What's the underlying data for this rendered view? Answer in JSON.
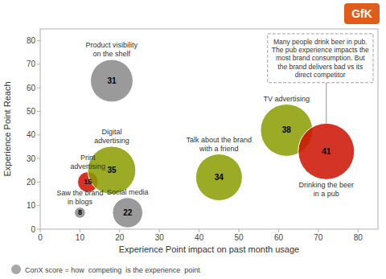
{
  "chart_data": {
    "type": "bubble",
    "xlabel": "Experience Point impact on past month usage",
    "ylabel": "Experience Point Reach",
    "xlim": [
      0,
      85
    ],
    "ylim": [
      0,
      85
    ],
    "xticks": [
      0,
      10,
      20,
      30,
      40,
      50,
      60,
      70,
      80
    ],
    "yticks": [
      0,
      10,
      20,
      30,
      40,
      50,
      60,
      70,
      80
    ],
    "data_labels": true,
    "points": [
      {
        "label": "Saw the brand\nin blogs",
        "x": 10,
        "y": 7,
        "size": 8,
        "color": "#888888"
      },
      {
        "label": "Print\nadvertising",
        "x": 12,
        "y": 20,
        "size": 15,
        "color": "#cc1100"
      },
      {
        "label": "Digital\nadvertising",
        "x": 18,
        "y": 25,
        "size": 35,
        "color": "#8a9c00"
      },
      {
        "label": "Product visibility\non the shelf",
        "x": 18,
        "y": 63,
        "size": 31,
        "color": "#888888"
      },
      {
        "label": "Social media",
        "x": 22,
        "y": 7,
        "size": 22,
        "color": "#888888"
      },
      {
        "label": "Talk about the brand\nwith a friend",
        "x": 45,
        "y": 22,
        "size": 34,
        "color": "#8a9c00"
      },
      {
        "label": "TV advertising",
        "x": 62,
        "y": 42,
        "size": 38,
        "color": "#8a9c00"
      },
      {
        "label": "Drinking the beer\nin a pub",
        "x": 72,
        "y": 33,
        "size": 41,
        "color": "#cc1100"
      }
    ],
    "annotation": "Many people drink beer in pub.\nThe pub experience impacts the\nmost brand consumption. But\nthe brand delivers bad vs its\ndirect competitor",
    "note": "ConX score = how  competing  is the experience  point",
    "logo": "GfK",
    "logo_color": "#e05c1a",
    "background": "#ffffff"
  }
}
